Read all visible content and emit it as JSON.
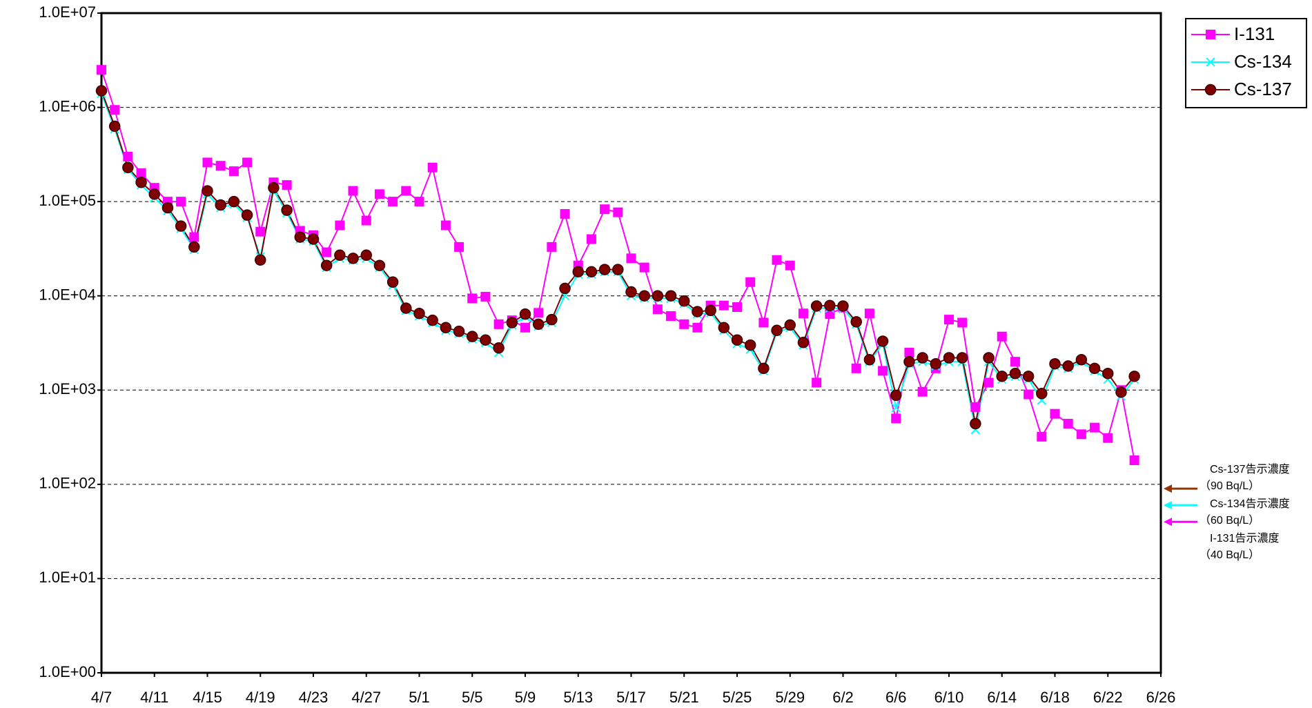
{
  "chart_data": {
    "type": "line",
    "log_scale": true,
    "grid": true,
    "legend": "top-right",
    "x": [
      "4/7",
      "4/8",
      "4/9",
      "4/10",
      "4/11",
      "4/12",
      "4/13",
      "4/14",
      "4/15",
      "4/16",
      "4/17",
      "4/18",
      "4/19",
      "4/20",
      "4/21",
      "4/22",
      "4/23",
      "4/24",
      "4/25",
      "4/26",
      "4/27",
      "4/28",
      "4/29",
      "4/30",
      "5/1",
      "5/2",
      "5/3",
      "5/4",
      "5/5",
      "5/6",
      "5/7",
      "5/8",
      "5/9",
      "5/10",
      "5/11",
      "5/12",
      "5/13",
      "5/14",
      "5/15",
      "5/16",
      "5/17",
      "5/18",
      "5/19",
      "5/20",
      "5/21",
      "5/22",
      "5/23",
      "5/24",
      "5/25",
      "5/26",
      "5/27",
      "5/28",
      "5/29",
      "5/30",
      "5/31",
      "6/1",
      "6/2",
      "6/3",
      "6/4",
      "6/5",
      "6/6",
      "6/7",
      "6/8",
      "6/9",
      "6/10",
      "6/11",
      "6/12",
      "6/13",
      "6/14",
      "6/15",
      "6/16",
      "6/17",
      "6/18",
      "6/19",
      "6/20",
      "6/21",
      "6/22",
      "6/23",
      "6/24"
    ],
    "xlim": [
      "4/7",
      "6/26"
    ],
    "xticks": [
      "4/7",
      "4/11",
      "4/15",
      "4/19",
      "4/23",
      "4/27",
      "5/1",
      "5/5",
      "5/9",
      "5/13",
      "5/17",
      "5/21",
      "5/25",
      "5/29",
      "6/2",
      "6/6",
      "6/10",
      "6/14",
      "6/18",
      "6/22",
      "6/26"
    ],
    "ylim": [
      1,
      10000000
    ],
    "yticks": [
      {
        "value": 1,
        "label": "1.0E+00"
      },
      {
        "value": 10,
        "label": "1.0E+01"
      },
      {
        "value": 100,
        "label": "1.0E+02"
      },
      {
        "value": 1000,
        "label": "1.0E+03"
      },
      {
        "value": 10000,
        "label": "1.0E+04"
      },
      {
        "value": 100000,
        "label": "1.0E+05"
      },
      {
        "value": 1000000,
        "label": "1.0E+06"
      },
      {
        "value": 10000000,
        "label": "1.0E+07"
      }
    ],
    "series": [
      {
        "name": "I-131",
        "color": "#ff00ff",
        "marker": "square",
        "values": [
          2500000,
          940000,
          300000,
          200000,
          140000,
          100000,
          100000,
          42000,
          260000,
          240000,
          210000,
          260000,
          48000,
          160000,
          150000,
          49000,
          44000,
          29000,
          56000,
          130000,
          63000,
          120000,
          100000,
          130000,
          100000,
          230000,
          56000,
          33000,
          9400,
          9800,
          5000,
          5500,
          4600,
          6600,
          33000,
          74000,
          21000,
          40000,
          83000,
          77000,
          25000,
          20000,
          7200,
          6100,
          5000,
          4600,
          7900,
          7900,
          7600,
          14000,
          5200,
          24000,
          21000,
          6500,
          1200,
          6400,
          7500,
          1700,
          6500,
          1600,
          500,
          2500,
          960,
          1700,
          5600,
          5200,
          660,
          1200,
          3700,
          2000,
          900,
          320,
          560,
          440,
          340,
          400,
          310,
          1000,
          180
        ]
      },
      {
        "name": "Cs-134",
        "color": "#00ffff",
        "marker": "x",
        "values": [
          1400000,
          590000,
          220000,
          150000,
          110000,
          80000,
          52000,
          31000,
          120000,
          86000,
          94000,
          68000,
          26000,
          130000,
          76000,
          40000,
          38000,
          20000,
          25000,
          24000,
          25000,
          20000,
          13000,
          7000,
          6100,
          5200,
          4300,
          4000,
          3500,
          3200,
          2500,
          4900,
          6000,
          4800,
          5200,
          10000,
          17000,
          17000,
          18000,
          18000,
          10000,
          9500,
          9500,
          9400,
          8300,
          6400,
          6600,
          4300,
          3100,
          2700,
          1600,
          4100,
          4600,
          3000,
          7400,
          7400,
          7300,
          5000,
          2000,
          3100,
          650,
          1900,
          2000,
          1800,
          2000,
          2000,
          380,
          2000,
          1300,
          1400,
          1300,
          780,
          1800,
          1700,
          2000,
          1600,
          1300,
          860,
          1300
        ]
      },
      {
        "name": "Cs-137",
        "color": "#800000",
        "marker": "circle",
        "values": [
          1500000,
          630000,
          230000,
          160000,
          120000,
          86000,
          55000,
          33000,
          130000,
          92000,
          100000,
          72000,
          24000,
          140000,
          81000,
          42000,
          40000,
          21000,
          27000,
          25000,
          27000,
          21000,
          14000,
          7400,
          6500,
          5500,
          4600,
          4200,
          3700,
          3400,
          2800,
          5200,
          6400,
          5000,
          5600,
          12000,
          18000,
          18000,
          19000,
          19000,
          11000,
          10000,
          10000,
          10000,
          8800,
          6800,
          7000,
          4600,
          3400,
          3000,
          1700,
          4300,
          4900,
          3200,
          7800,
          7900,
          7800,
          5300,
          2100,
          3300,
          880,
          2000,
          2200,
          1900,
          2200,
          2200,
          440,
          2200,
          1400,
          1500,
          1400,
          920,
          1900,
          1800,
          2100,
          1700,
          1500,
          950,
          1400
        ]
      }
    ],
    "limits": [
      {
        "name": "Cs-137告示濃度",
        "label": "（90  Bq/L）",
        "value": 90,
        "color": "#993300"
      },
      {
        "name": "Cs-134告示濃度",
        "label": "（60  Bq/L）",
        "value": 60,
        "color": "#00ffff"
      },
      {
        "name": "I-131告示濃度",
        "label": "（40  Bq/L）",
        "value": 40,
        "color": "#ff00ff"
      }
    ]
  }
}
